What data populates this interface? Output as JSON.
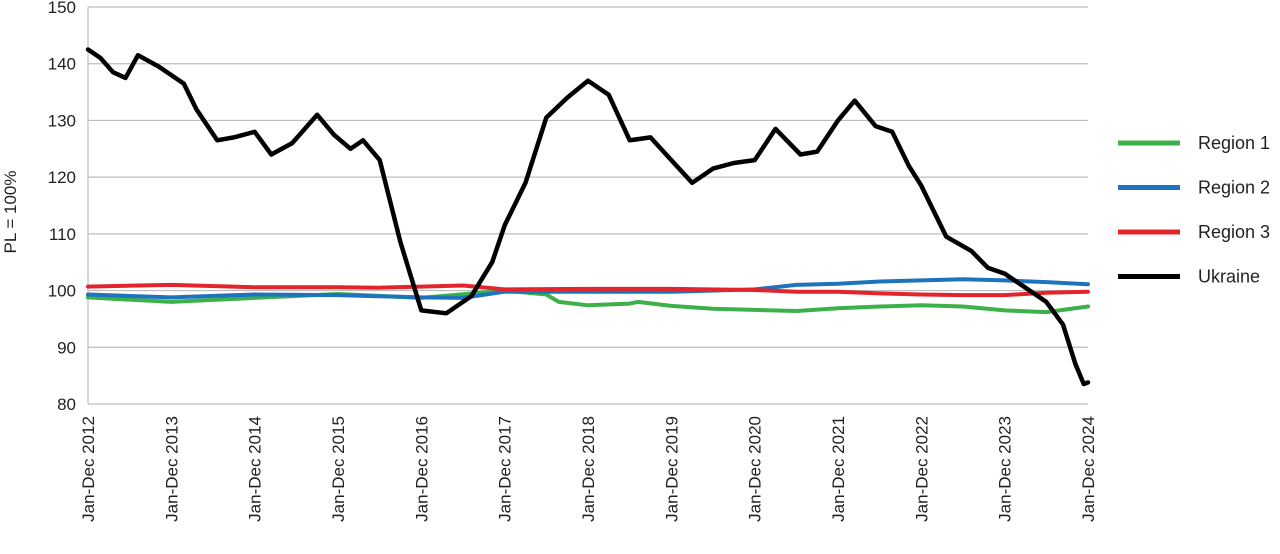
{
  "chart_data": {
    "type": "line",
    "title": "",
    "xlabel": "",
    "ylabel": "PL = 100%",
    "ylim": [
      80,
      150
    ],
    "yticks": [
      80,
      90,
      100,
      110,
      120,
      130,
      140,
      150
    ],
    "grid": true,
    "legend_position": "right",
    "xticks": [
      "Jan-Dec 2012",
      "Jan-Dec 2013",
      "Jan-Dec 2014",
      "Jan-Dec 2015",
      "Jan-Dec 2016",
      "Jan-Dec 2017",
      "Jan-Dec 2018",
      "Jan-Dec 2019",
      "Jan-Dec 2020",
      "Jan-Dec 2021",
      "Jan-Dec 2022",
      "Jan-Dec 2023",
      "Jan-Dec 2024"
    ],
    "series": [
      {
        "name": "Region 1",
        "color": "#3cb04a",
        "points": [
          [
            0,
            98.8
          ],
          [
            1,
            98.0
          ],
          [
            2,
            98.7
          ],
          [
            3,
            99.4
          ],
          [
            4,
            98.7
          ],
          [
            5,
            100.0
          ],
          [
            5.5,
            99.3
          ],
          [
            5.65,
            98.0
          ],
          [
            6,
            97.4
          ],
          [
            6.5,
            97.7
          ],
          [
            6.6,
            98.0
          ],
          [
            7,
            97.3
          ],
          [
            7.5,
            96.8
          ],
          [
            8,
            96.6
          ],
          [
            8.5,
            96.4
          ],
          [
            9,
            96.9
          ],
          [
            9.5,
            97.2
          ],
          [
            10,
            97.4
          ],
          [
            10.5,
            97.2
          ],
          [
            11,
            96.5
          ],
          [
            11.5,
            96.2
          ],
          [
            12,
            97.2
          ]
        ]
      },
      {
        "name": "Region 2",
        "color": "#1e73be",
        "points": [
          [
            0,
            99.3
          ],
          [
            1,
            98.8
          ],
          [
            2,
            99.3
          ],
          [
            3,
            99.2
          ],
          [
            4,
            98.8
          ],
          [
            4.5,
            98.7
          ],
          [
            5,
            99.8
          ],
          [
            6,
            99.8
          ],
          [
            7,
            99.8
          ],
          [
            8,
            100.2
          ],
          [
            8.5,
            101.0
          ],
          [
            9,
            101.2
          ],
          [
            9.5,
            101.6
          ],
          [
            10,
            101.8
          ],
          [
            10.5,
            102.0
          ],
          [
            11,
            101.8
          ],
          [
            11.5,
            101.5
          ],
          [
            12,
            101.1
          ]
        ]
      },
      {
        "name": "Region 3",
        "color": "#e3242b",
        "points": [
          [
            0,
            100.7
          ],
          [
            1,
            101.0
          ],
          [
            2,
            100.6
          ],
          [
            3,
            100.6
          ],
          [
            3.5,
            100.5
          ],
          [
            4,
            100.7
          ],
          [
            4.5,
            100.9
          ],
          [
            5,
            100.2
          ],
          [
            6,
            100.3
          ],
          [
            7,
            100.3
          ],
          [
            8,
            100.1
          ],
          [
            8.5,
            99.8
          ],
          [
            9,
            99.8
          ],
          [
            9.5,
            99.5
          ],
          [
            10,
            99.3
          ],
          [
            10.5,
            99.2
          ],
          [
            11,
            99.2
          ],
          [
            11.5,
            99.6
          ],
          [
            12,
            99.8
          ]
        ]
      },
      {
        "name": "Ukraine",
        "color": "#000000",
        "points": [
          [
            0,
            142.5
          ],
          [
            0.15,
            141.0
          ],
          [
            0.3,
            138.5
          ],
          [
            0.45,
            137.5
          ],
          [
            0.6,
            141.5
          ],
          [
            0.85,
            139.5
          ],
          [
            1,
            138.0
          ],
          [
            1.15,
            136.5
          ],
          [
            1.3,
            132.0
          ],
          [
            1.55,
            126.5
          ],
          [
            1.75,
            127.0
          ],
          [
            2,
            128.0
          ],
          [
            2.2,
            124.0
          ],
          [
            2.45,
            126.0
          ],
          [
            2.75,
            131.0
          ],
          [
            2.95,
            127.5
          ],
          [
            3.15,
            125.0
          ],
          [
            3.3,
            126.5
          ],
          [
            3.5,
            123.0
          ],
          [
            3.75,
            108.5
          ],
          [
            4,
            96.5
          ],
          [
            4.3,
            96.0
          ],
          [
            4.6,
            99.0
          ],
          [
            4.85,
            105.0
          ],
          [
            5,
            111.5
          ],
          [
            5.25,
            119.0
          ],
          [
            5.5,
            130.5
          ],
          [
            5.75,
            134.0
          ],
          [
            6,
            137.0
          ],
          [
            6.25,
            134.5
          ],
          [
            6.5,
            126.5
          ],
          [
            6.75,
            127.0
          ],
          [
            7,
            123.0
          ],
          [
            7.25,
            119.0
          ],
          [
            7.5,
            121.5
          ],
          [
            7.75,
            122.5
          ],
          [
            8,
            123.0
          ],
          [
            8.25,
            128.5
          ],
          [
            8.55,
            124.0
          ],
          [
            8.75,
            124.5
          ],
          [
            9,
            130.0
          ],
          [
            9.2,
            133.5
          ],
          [
            9.45,
            129.0
          ],
          [
            9.65,
            128.0
          ],
          [
            9.85,
            122.0
          ],
          [
            10,
            118.5
          ],
          [
            10.3,
            109.5
          ],
          [
            10.6,
            107.0
          ],
          [
            10.8,
            104.0
          ],
          [
            11,
            103.0
          ],
          [
            11.2,
            101.0
          ],
          [
            11.5,
            98.0
          ],
          [
            11.7,
            94.0
          ],
          [
            11.85,
            87.0
          ],
          [
            11.95,
            83.5
          ],
          [
            12,
            83.8
          ]
        ]
      }
    ]
  }
}
